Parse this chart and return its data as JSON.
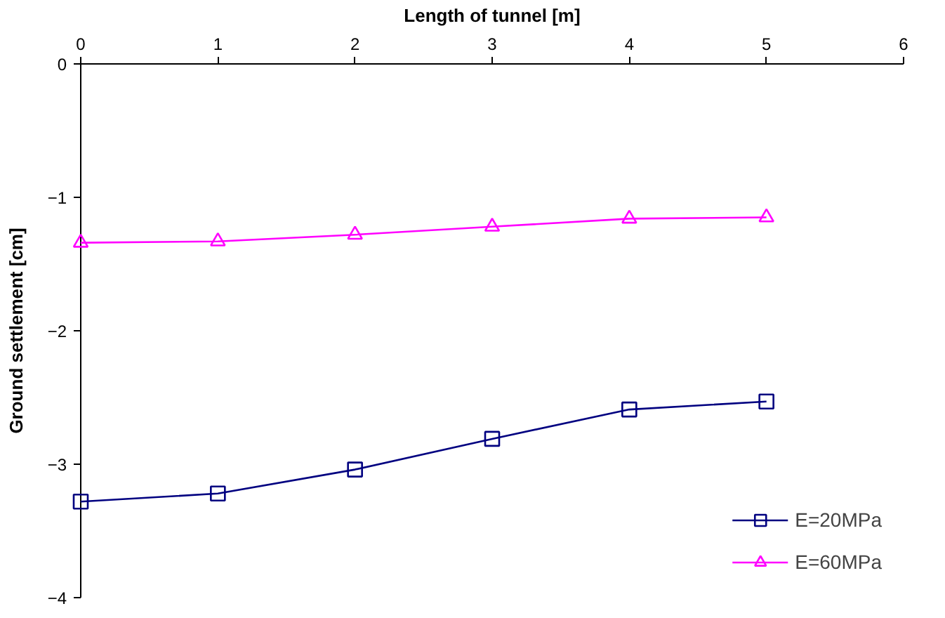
{
  "chart_data": {
    "type": "line",
    "xlabel": "Length of tunnel [m]",
    "ylabel": "Ground settlement [cm]",
    "x": [
      0,
      1,
      2,
      3,
      4,
      5
    ],
    "series": [
      {
        "name": "E=20MPa",
        "color": "#000080",
        "marker": "square",
        "values": [
          -3.28,
          -3.22,
          -3.04,
          -2.81,
          -2.59,
          -2.53
        ]
      },
      {
        "name": "E=60MPa",
        "color": "#ff00ff",
        "marker": "triangle",
        "values": [
          -1.34,
          -1.33,
          -1.28,
          -1.22,
          -1.16,
          -1.15
        ]
      }
    ],
    "xlim": [
      0,
      6
    ],
    "xticks": [
      0,
      1,
      2,
      3,
      4,
      5,
      6
    ],
    "ylim": [
      -4,
      0
    ],
    "yticks": [
      -4,
      -3,
      -2,
      -1,
      0
    ],
    "grid": false,
    "legend": "bottom right"
  }
}
